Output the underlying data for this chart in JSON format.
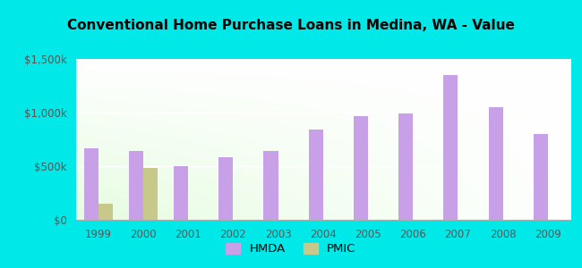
{
  "title": "Conventional Home Purchase Loans in Medina, WA - Value",
  "years": [
    1999,
    2000,
    2001,
    2002,
    2003,
    2004,
    2005,
    2006,
    2007,
    2008,
    2009
  ],
  "hmda_values": [
    670000,
    640000,
    500000,
    580000,
    640000,
    840000,
    970000,
    990000,
    1350000,
    1050000,
    800000
  ],
  "pmic_values": [
    150000,
    480000,
    0,
    0,
    0,
    0,
    0,
    0,
    0,
    0,
    0
  ],
  "hmda_color": "#c8a0e8",
  "pmic_color": "#c8c88a",
  "background_outer": "#00e8e8",
  "ylim": [
    0,
    1500000
  ],
  "yticks": [
    0,
    500000,
    1000000,
    1500000
  ],
  "ytick_labels": [
    "$0",
    "$500k",
    "$1,000k",
    "$1,500k"
  ],
  "bar_width": 0.32,
  "figsize": [
    6.5,
    3.0
  ],
  "dpi": 100
}
